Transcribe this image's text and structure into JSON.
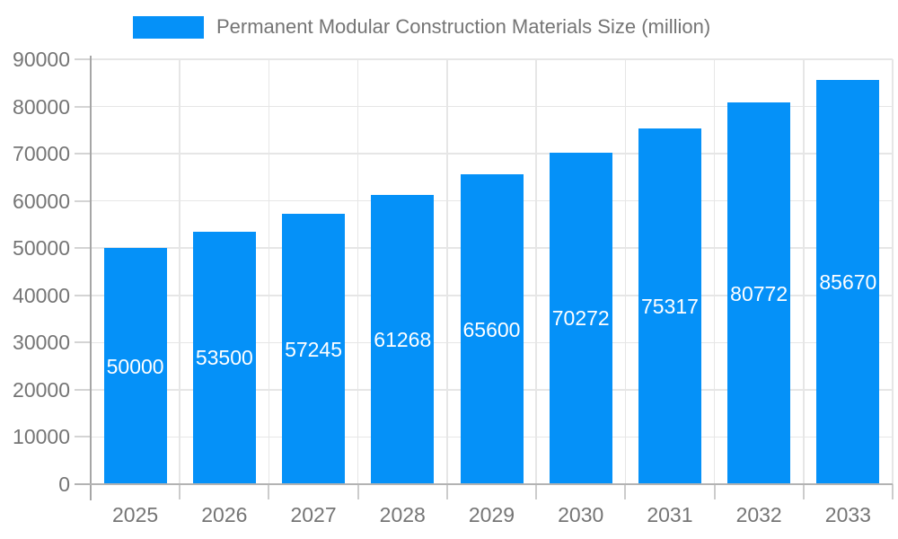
{
  "legend": {
    "label": "Permanent Modular Construction Materials Size (million)"
  },
  "chart_data": {
    "type": "bar",
    "title": "Permanent Modular Construction Materials Size (million)",
    "categories": [
      "2025",
      "2026",
      "2027",
      "2028",
      "2029",
      "2030",
      "2031",
      "2032",
      "2033"
    ],
    "series": [
      {
        "name": "Permanent Modular Construction Materials Size (million)",
        "values": [
          50000,
          53500,
          57245,
          61268,
          65600,
          70272,
          75317,
          80772,
          85670
        ]
      }
    ],
    "value_labels": [
      "50000",
      "53500",
      "57245",
      "61268",
      "65600",
      "70272",
      "75317",
      "80772",
      "85670"
    ],
    "xlabel": "",
    "ylabel": "",
    "ylim": [
      0,
      90000
    ],
    "ytick_step": 10000,
    "ytick_labels": [
      "0",
      "10000",
      "20000",
      "30000",
      "40000",
      "50000",
      "60000",
      "70000",
      "80000",
      "90000"
    ],
    "grid": true,
    "legend_position": "top",
    "colors": {
      "bar": "#0591f8",
      "value_label": "#ffffff",
      "axis_text": "#757575",
      "grid_line": "#e6e6e6",
      "axis_line": "#a6a6a6",
      "tick": "#cccccc"
    }
  }
}
